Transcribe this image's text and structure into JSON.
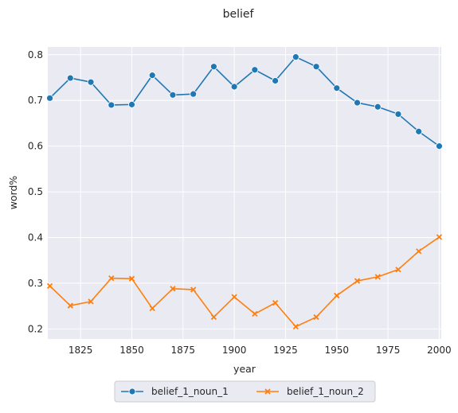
{
  "chart_data": {
    "type": "line",
    "title": "belief",
    "xlabel": "year",
    "ylabel": "word%",
    "x": [
      1810,
      1820,
      1830,
      1840,
      1850,
      1860,
      1870,
      1880,
      1890,
      1900,
      1910,
      1920,
      1930,
      1940,
      1950,
      1960,
      1970,
      1980,
      1990,
      2000
    ],
    "xlim": [
      1809,
      2001
    ],
    "ylim": [
      0.178,
      0.817
    ],
    "xticks": [
      1825,
      1850,
      1875,
      1900,
      1925,
      1950,
      1975,
      2000
    ],
    "yticks": [
      0.2,
      0.3,
      0.4,
      0.5,
      0.6,
      0.7,
      0.8
    ],
    "grid": true,
    "legend_position": "bottom-center, outside plot",
    "series": [
      {
        "name": "belief_1_noun_1",
        "color": "#1f77b4",
        "marker": "circle",
        "values": [
          0.705,
          0.749,
          0.74,
          0.69,
          0.691,
          0.755,
          0.712,
          0.714,
          0.774,
          0.73,
          0.767,
          0.743,
          0.795,
          0.774,
          0.727,
          0.695,
          0.686,
          0.67,
          0.632,
          0.6
        ]
      },
      {
        "name": "belief_1_noun_2",
        "color": "#ff7f0e",
        "marker": "x",
        "values": [
          0.294,
          0.251,
          0.26,
          0.311,
          0.31,
          0.245,
          0.288,
          0.286,
          0.226,
          0.27,
          0.233,
          0.257,
          0.205,
          0.226,
          0.273,
          0.305,
          0.314,
          0.33,
          0.37,
          0.401
        ]
      }
    ]
  },
  "colors": {
    "plot_background": "#eaeaf2",
    "grid": "#ffffff"
  }
}
